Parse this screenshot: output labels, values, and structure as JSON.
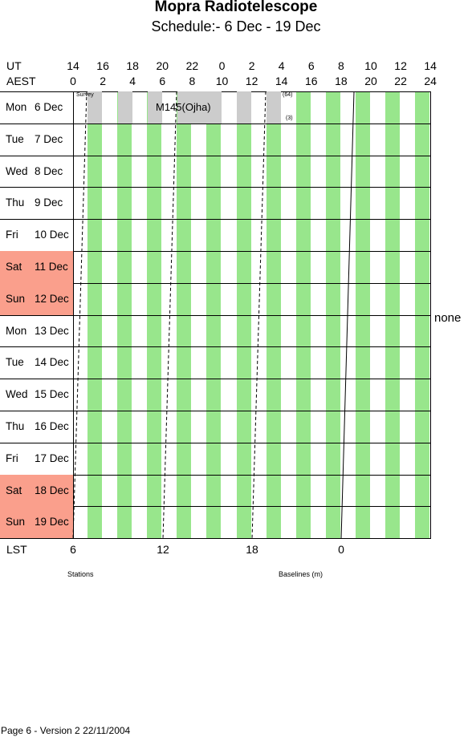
{
  "header": {
    "title": "Mopra Radiotelescope",
    "subtitle": "Schedule:- 6  Dec - 19 Dec"
  },
  "axis": {
    "ut_label": "UT",
    "aest_label": "AEST",
    "ut_ticks": [
      "14",
      "16",
      "18",
      "20",
      "22",
      "0",
      "2",
      "4",
      "6",
      "8",
      "10",
      "12",
      "14"
    ],
    "aest_ticks": [
      "0",
      "2",
      "4",
      "6",
      "8",
      "10",
      "12",
      "14",
      "16",
      "18",
      "20",
      "22",
      "24"
    ],
    "lst_label": "LST",
    "lst_ticks": [
      "6",
      "12",
      "18",
      "0"
    ]
  },
  "days": [
    {
      "name": "Mon",
      "date": "6 Dec",
      "weekend": false
    },
    {
      "name": "Tue",
      "date": "7 Dec",
      "weekend": false
    },
    {
      "name": "Wed",
      "date": "8 Dec",
      "weekend": false
    },
    {
      "name": "Thu",
      "date": "9 Dec",
      "weekend": false
    },
    {
      "name": "Fri",
      "date": "10 Dec",
      "weekend": false
    },
    {
      "name": "Sat",
      "date": "11 Dec",
      "weekend": true
    },
    {
      "name": "Sun",
      "date": "12 Dec",
      "weekend": true
    },
    {
      "name": "Mon",
      "date": "13 Dec",
      "weekend": false
    },
    {
      "name": "Tue",
      "date": "14 Dec",
      "weekend": false
    },
    {
      "name": "Wed",
      "date": "15 Dec",
      "weekend": false
    },
    {
      "name": "Thu",
      "date": "16 Dec",
      "weekend": false
    },
    {
      "name": "Fri",
      "date": "17 Dec",
      "weekend": false
    },
    {
      "name": "Sat",
      "date": "18 Dec",
      "weekend": true
    },
    {
      "name": "Sun",
      "date": "19 Dec",
      "weekend": true
    }
  ],
  "observations": {
    "survey_label": "Survey",
    "project_label": "M145(Ojha)",
    "note_top": "(64)",
    "note_bottom": "(3)"
  },
  "side": {
    "config_label": "none"
  },
  "footer": {
    "stations_label": "Stations",
    "baselines_label": "Baselines (m)",
    "page_info": "Page 6 - Version 2  22/11/2004"
  },
  "colors": {
    "weekend": "#fa9f8c",
    "green_stripe": "#98e68c",
    "observation_grey": "#cccccc"
  }
}
